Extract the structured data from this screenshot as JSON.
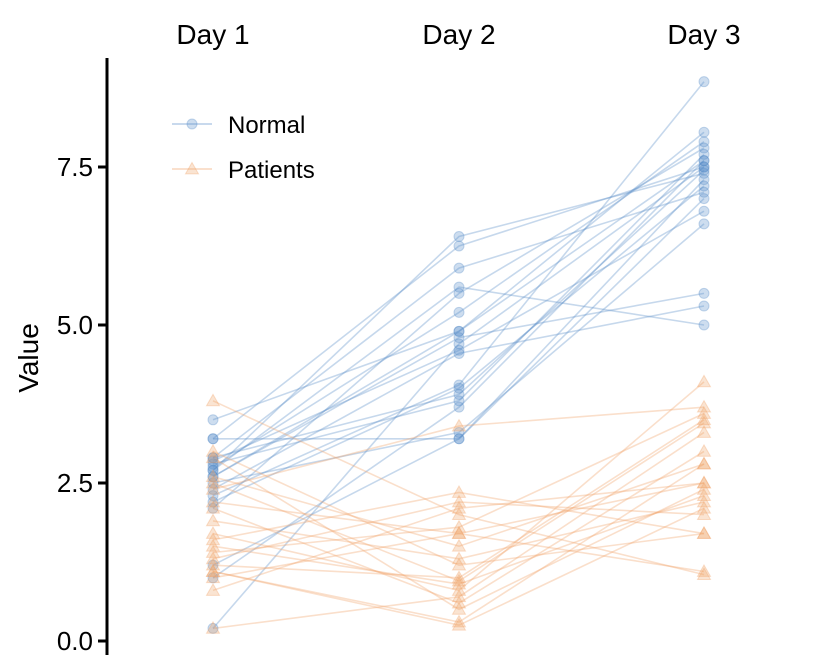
{
  "chart_data": {
    "type": "line",
    "categories": [
      "Day 1",
      "Day 2",
      "Day 3"
    ],
    "ylabel": "Value",
    "xlabel": "",
    "ylim": [
      0,
      9
    ],
    "yticks": [
      "0.0",
      "2.5",
      "5.0",
      "7.5"
    ],
    "yticks_values": [
      0,
      2.5,
      5,
      7.5
    ],
    "grid": false,
    "legend_position": "top-left",
    "series": [
      {
        "name": "Normal",
        "marker": "circle",
        "color": "#5b8fc9",
        "lines": [
          [
            0.2,
            4.7,
            7.5
          ],
          [
            1.2,
            3.2,
            7.3
          ],
          [
            2.1,
            5.5,
            7.8
          ],
          [
            2.2,
            4.0,
            7.2
          ],
          [
            2.5,
            3.3,
            6.6
          ],
          [
            2.6,
            4.9,
            7.6
          ],
          [
            2.7,
            6.4,
            7.4
          ],
          [
            2.75,
            5.2,
            7.9
          ],
          [
            2.8,
            3.8,
            7.7
          ],
          [
            2.85,
            4.6,
            6.8
          ],
          [
            2.9,
            5.9,
            7.1
          ],
          [
            3.2,
            3.2,
            7.0
          ],
          [
            3.2,
            6.25,
            7.5
          ],
          [
            3.5,
            4.9,
            8.05
          ],
          [
            2.7,
            5.6,
            5.0
          ],
          [
            2.4,
            4.55,
            5.3
          ],
          [
            2.6,
            4.8,
            5.5
          ],
          [
            1.0,
            3.7,
            7.6
          ],
          [
            2.3,
            4.05,
            8.85
          ],
          [
            2.9,
            3.9,
            7.45
          ]
        ]
      },
      {
        "name": "Patients",
        "marker": "triangle",
        "color": "#f0a46a",
        "lines": [
          [
            0.2,
            0.7,
            3.3
          ],
          [
            0.8,
            2.1,
            2.5
          ],
          [
            1.0,
            1.7,
            1.1
          ],
          [
            1.1,
            0.3,
            2.8
          ],
          [
            1.2,
            1.0,
            3.5
          ],
          [
            1.3,
            2.2,
            2.0
          ],
          [
            1.4,
            1.8,
            3.6
          ],
          [
            1.5,
            0.9,
            2.3
          ],
          [
            1.6,
            2.35,
            1.7
          ],
          [
            1.7,
            0.8,
            4.1
          ],
          [
            1.9,
            1.3,
            2.2
          ],
          [
            2.1,
            0.6,
            3.0
          ],
          [
            2.2,
            1.7,
            2.5
          ],
          [
            2.4,
            3.4,
            3.7
          ],
          [
            2.6,
            1.5,
            2.8
          ],
          [
            2.9,
            0.5,
            2.4
          ],
          [
            3.0,
            1.2,
            1.7
          ],
          [
            3.8,
            2.0,
            1.05
          ],
          [
            1.1,
            0.25,
            2.1
          ],
          [
            2.5,
            0.95,
            3.45
          ]
        ]
      }
    ]
  }
}
